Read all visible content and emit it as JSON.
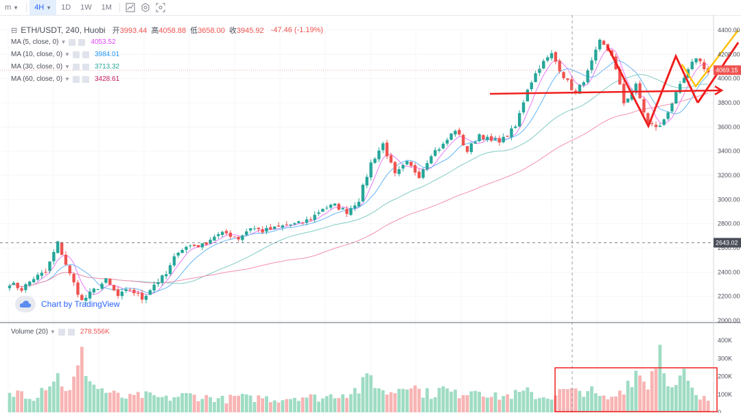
{
  "toolbar": {
    "items": [
      {
        "label": "m",
        "dropdown": true,
        "active": false
      },
      {
        "label": "4H",
        "dropdown": true,
        "active": true
      },
      {
        "label": "1D",
        "dropdown": false,
        "active": false
      },
      {
        "label": "1W",
        "dropdown": false,
        "active": false
      },
      {
        "label": "1M",
        "dropdown": false,
        "active": false
      }
    ],
    "icons": [
      "chart-type-icon",
      "settings-icon",
      "screenshot-icon"
    ]
  },
  "legend": {
    "symbol": "ETH/USDT, 240, Huobi",
    "open_label": "开",
    "open": "3993.44",
    "high_label": "高",
    "high": "4058.88",
    "low_label": "低",
    "low": "3658.00",
    "close_label": "收",
    "close": "3945.92",
    "change": "-47.46 (-1.19%)"
  },
  "indicators": [
    {
      "label": "MA (5, close, 0)",
      "value": "4053.52",
      "color": "#e040fb"
    },
    {
      "label": "MA (10, close, 0)",
      "value": "3984.01",
      "color": "#2196f3"
    },
    {
      "label": "MA (30, close, 0)",
      "value": "3713.32",
      "color": "#26a69a"
    },
    {
      "label": "MA (60, close, 0)",
      "value": "3428.61",
      "color": "#c2185b"
    }
  ],
  "volume_legend": {
    "label": "Volume (20)",
    "value": "278.556K"
  },
  "watermark": "Chart by TradingView",
  "colors": {
    "up": "#26a69a",
    "down": "#ef5350",
    "up_vol": "#9fdcc4",
    "down_vol": "#f8b4b4",
    "ma5": "#e879f9",
    "ma10": "#64b5f6",
    "ma30": "#80cbc4",
    "ma60": "#f48fb1",
    "annotation": "#ef1f1f",
    "annotation_alt": "#ffc107"
  },
  "chart_data": {
    "type": "candlestick",
    "symbol": "ETH/USDT",
    "interval": "240",
    "exchange": "Huobi",
    "ylim": [
      2000,
      4400
    ],
    "price_ticks": [
      "4400.00",
      "4200.00",
      "4000.00",
      "3800.00",
      "3600.00",
      "3400.00",
      "3200.00",
      "3000.00",
      "2800.00",
      "2600.00",
      "2400.00",
      "2200.00",
      "2000.00"
    ],
    "volume_ticks": [
      "400K",
      "300K",
      "200K",
      "100K",
      "0"
    ],
    "last_price_label": "4069.15",
    "crosshair_price_label": "2643.02",
    "anchors": [
      2310,
      2260,
      2350,
      2400,
      2640,
      2380,
      2160,
      2250,
      2330,
      2200,
      2260,
      2180,
      2300,
      2380,
      2580,
      2620,
      2620,
      2700,
      2720,
      2680,
      2770,
      2740,
      2760,
      2790,
      2800,
      2840,
      2930,
      2950,
      2900,
      3000,
      3300,
      3460,
      3200,
      3300,
      3200,
      3380,
      3450,
      3580,
      3400,
      3540,
      3480,
      3500,
      3600,
      3920,
      4100,
      4200,
      4020,
      3870,
      4050,
      4300,
      4200,
      3800,
      3940,
      3620,
      3600,
      3800,
      4000,
      4180,
      4050
    ],
    "volume_profile": [
      90,
      120,
      85,
      160,
      200,
      110,
      300,
      150,
      115,
      90,
      80,
      95,
      85,
      75,
      90,
      95,
      85,
      80,
      70,
      90,
      75,
      85,
      70,
      80,
      90,
      85,
      80,
      100,
      110,
      130,
      200,
      110,
      120,
      180,
      120,
      100,
      130,
      100,
      120,
      140,
      85,
      90,
      100,
      110,
      85,
      90,
      120,
      110,
      130,
      80,
      75,
      140,
      230,
      160,
      370,
      120,
      200,
      80,
      70
    ],
    "volume_ylim": [
      0,
      420000
    ],
    "volume_last": 278556,
    "ma_periods": [
      5,
      10,
      30,
      60
    ],
    "ma_last": [
      4053.52,
      3984.01,
      3713.32,
      3428.61
    ]
  }
}
